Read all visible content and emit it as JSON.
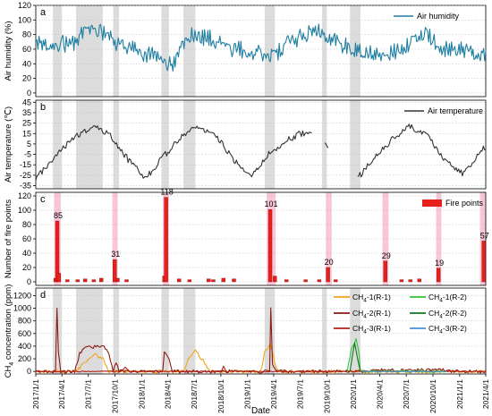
{
  "chart_data": [
    {
      "panel": "a",
      "type": "line",
      "ylabel": "Air humidity (%)",
      "ylim": [
        -5,
        120
      ],
      "yticks": [
        0,
        20,
        40,
        60,
        80,
        100,
        120
      ],
      "series": [
        {
          "name": "Air humidity",
          "color": "#1f7fa0",
          "noise": 12,
          "points": [
            {
              "x": "2017-01-01",
              "y": 70
            },
            {
              "x": "2017-03-01",
              "y": 70
            },
            {
              "x": "2017-05-01",
              "y": 65
            },
            {
              "x": "2017-06-15",
              "y": 85
            },
            {
              "x": "2017-08-01",
              "y": 88
            },
            {
              "x": "2017-10-01",
              "y": 68
            },
            {
              "x": "2017-12-01",
              "y": 60
            },
            {
              "x": "2018-03-01",
              "y": 48
            },
            {
              "x": "2018-04-15",
              "y": 38
            },
            {
              "x": "2018-06-15",
              "y": 80
            },
            {
              "x": "2018-09-01",
              "y": 75
            },
            {
              "x": "2018-11-01",
              "y": 62
            },
            {
              "x": "2019-01-01",
              "y": 58
            },
            {
              "x": "2019-04-01",
              "y": 52
            },
            {
              "x": "2019-06-01",
              "y": 70
            },
            {
              "x": "2019-08-15",
              "y": 85
            },
            {
              "x": "2019-09-30",
              "y": 82
            },
            {
              "x": "2019-11-01",
              "y": 70
            },
            {
              "x": "2020-01-01",
              "y": 60
            },
            {
              "x": "2020-04-01",
              "y": 52
            },
            {
              "x": "2020-06-01",
              "y": 58
            },
            {
              "x": "2020-09-01",
              "y": 82
            },
            {
              "x": "2020-11-01",
              "y": 62
            },
            {
              "x": "2021-04-01",
              "y": 55
            }
          ]
        }
      ],
      "shaded_periods": [
        [
          "2017-03-01",
          "2017-04-01"
        ],
        [
          "2017-05-20",
          "2017-08-20"
        ],
        [
          "2017-09-25",
          "2017-10-15"
        ],
        [
          "2018-03-10",
          "2018-04-05"
        ],
        [
          "2018-05-25",
          "2018-07-05"
        ],
        [
          "2019-03-01",
          "2019-04-05"
        ],
        [
          "2019-09-15",
          "2019-10-01"
        ],
        [
          "2019-12-20",
          "2020-01-25"
        ]
      ],
      "legend_placement": "top-right"
    },
    {
      "panel": "b",
      "type": "line",
      "ylabel": "Air temperature (℃)",
      "ylim": [
        -38,
        47
      ],
      "yticks": [
        -35,
        -25,
        -15,
        -5,
        5,
        15,
        25,
        35,
        45
      ],
      "series": [
        {
          "name": "Air temperature",
          "color": "#333333",
          "noise": 3,
          "points": [
            {
              "x": "2017-01-01",
              "y": -28
            },
            {
              "x": "2017-03-15",
              "y": -5
            },
            {
              "x": "2017-05-15",
              "y": 12
            },
            {
              "x": "2017-07-15",
              "y": 22
            },
            {
              "x": "2017-09-15",
              "y": 13
            },
            {
              "x": "2017-11-15",
              "y": -10
            },
            {
              "x": "2018-01-15",
              "y": -28
            },
            {
              "x": "2018-03-15",
              "y": -8
            },
            {
              "x": "2018-05-15",
              "y": 12
            },
            {
              "x": "2018-07-15",
              "y": 22
            },
            {
              "x": "2018-09-15",
              "y": 12
            },
            {
              "x": "2018-11-15",
              "y": -10
            },
            {
              "x": "2019-01-15",
              "y": -25
            },
            {
              "x": "2019-03-15",
              "y": -5
            },
            {
              "x": "2019-05-15",
              "y": 8
            },
            {
              "x": "2019-07-01",
              "y": 15
            },
            {
              "x": "2019-08-15",
              "y": 14
            },
            {
              "x": "2019-08-20",
              "y": null
            },
            {
              "x": "2019-09-25",
              "y": 7
            },
            {
              "x": "2019-10-10",
              "y": 2
            },
            {
              "x": "2019-10-15",
              "y": null
            },
            {
              "x": "2020-01-15",
              "y": -28
            },
            {
              "x": "2020-03-15",
              "y": -8
            },
            {
              "x": "2020-05-15",
              "y": 10
            },
            {
              "x": "2020-07-15",
              "y": 22
            },
            {
              "x": "2020-09-15",
              "y": 12
            },
            {
              "x": "2020-11-15",
              "y": -12
            },
            {
              "x": "2021-01-15",
              "y": -24
            },
            {
              "x": "2021-04-01",
              "y": 3
            }
          ]
        }
      ],
      "legend_placement": "top-right"
    },
    {
      "panel": "c",
      "type": "bar",
      "ylabel": "Number of fire points",
      "ylim": [
        -5,
        125
      ],
      "yticks": [
        0,
        20,
        40,
        60,
        80,
        100,
        120
      ],
      "series": [
        {
          "name": "Fire points",
          "color": "#e8201c",
          "bars": [
            {
              "x": "2017-03-10",
              "y": 5
            },
            {
              "x": "2017-03-16",
              "y": 85,
              "label": "85"
            },
            {
              "x": "2017-03-22",
              "y": 12
            },
            {
              "x": "2017-04-20",
              "y": 3
            },
            {
              "x": "2017-05-25",
              "y": 3
            },
            {
              "x": "2017-06-20",
              "y": 4
            },
            {
              "x": "2017-07-20",
              "y": 3
            },
            {
              "x": "2017-08-15",
              "y": 5
            },
            {
              "x": "2017-09-30",
              "y": 31,
              "label": "31"
            },
            {
              "x": "2017-10-10",
              "y": 5
            },
            {
              "x": "2017-11-10",
              "y": 3
            },
            {
              "x": "2018-03-20",
              "y": 8
            },
            {
              "x": "2018-03-26",
              "y": 118,
              "label": "118"
            },
            {
              "x": "2018-05-10",
              "y": 4
            },
            {
              "x": "2018-06-15",
              "y": 3
            },
            {
              "x": "2018-08-20",
              "y": 4
            },
            {
              "x": "2018-09-05",
              "y": 3
            },
            {
              "x": "2018-10-10",
              "y": 5
            },
            {
              "x": "2018-11-15",
              "y": 4
            },
            {
              "x": "2019-03-20",
              "y": 101,
              "label": "101"
            },
            {
              "x": "2019-04-05",
              "y": 8
            },
            {
              "x": "2019-05-15",
              "y": 3
            },
            {
              "x": "2019-07-20",
              "y": 3
            },
            {
              "x": "2019-09-05",
              "y": 3
            },
            {
              "x": "2019-10-05",
              "y": 20,
              "label": "20"
            },
            {
              "x": "2019-11-01",
              "y": 3
            },
            {
              "x": "2020-04-20",
              "y": 29,
              "label": "29"
            },
            {
              "x": "2020-06-15",
              "y": 3
            },
            {
              "x": "2020-07-15",
              "y": 3
            },
            {
              "x": "2020-08-15",
              "y": 4
            },
            {
              "x": "2020-10-20",
              "y": 19,
              "label": "19"
            },
            {
              "x": "2021-03-25",
              "y": 57,
              "label": "57"
            }
          ]
        }
      ],
      "shaded_highlight": [
        [
          "2017-03-05",
          "2017-03-28"
        ],
        [
          "2017-09-22",
          "2017-10-10"
        ],
        [
          "2018-03-15",
          "2018-04-05"
        ],
        [
          "2019-03-08",
          "2019-04-08"
        ],
        [
          "2019-09-28",
          "2019-10-18"
        ],
        [
          "2020-04-10",
          "2020-05-01"
        ],
        [
          "2020-10-12",
          "2020-10-30"
        ],
        [
          "2021-03-12",
          "2021-04-01"
        ]
      ],
      "legend_placement": "top-right"
    },
    {
      "panel": "d",
      "type": "line",
      "ylabel": "CH4 concentration (ppm)",
      "xlabel": "Date",
      "ylim": [
        -40,
        1320
      ],
      "yticks": [
        0,
        200,
        400,
        600,
        800,
        1000,
        1200
      ],
      "xticks": [
        "2017/1/1",
        "2017/4/1",
        "2017/7/1",
        "2017/10/1",
        "2018/1/1",
        "2018/4/1",
        "2018/7/1",
        "2018/10/1",
        "2019/1/1",
        "2019/4/1",
        "2019/7/1",
        "2019/10/1",
        "2020/1/1",
        "2020/4/1",
        "2020/7/1",
        "2020/10/1",
        "2021/1/1",
        "2021/4/1"
      ],
      "series": [
        {
          "name": "CH4-1(R-1)",
          "name_parts": [
            "CH",
            "4",
            "-1(R-1)"
          ],
          "color": "#f2a51a",
          "noise": 25,
          "points": [
            {
              "x": "2017-01-01",
              "y": 0
            },
            {
              "x": "2017-05-20",
              "y": 0
            },
            {
              "x": "2017-06-20",
              "y": 150
            },
            {
              "x": "2017-07-20",
              "y": 280
            },
            {
              "x": "2017-08-20",
              "y": 200
            },
            {
              "x": "2017-09-10",
              "y": 0
            },
            {
              "x": "2018-05-25",
              "y": 0
            },
            {
              "x": "2018-06-10",
              "y": 200
            },
            {
              "x": "2018-07-05",
              "y": 320
            },
            {
              "x": "2018-08-01",
              "y": 180
            },
            {
              "x": "2018-08-25",
              "y": 0
            },
            {
              "x": "2019-02-15",
              "y": 0
            },
            {
              "x": "2019-03-01",
              "y": 300
            },
            {
              "x": "2019-03-20",
              "y": 450
            },
            {
              "x": "2019-04-10",
              "y": 50
            },
            {
              "x": "2019-04-20",
              "y": 0
            },
            {
              "x": "2021-04-01",
              "y": 0
            }
          ]
        },
        {
          "name": "CH4-2(R-1)",
          "name_parts": [
            "CH",
            "4",
            "-2(R-1)"
          ],
          "color": "#8c1a12",
          "noise": 25,
          "points": [
            {
              "x": "2017-01-01",
              "y": 0
            },
            {
              "x": "2017-03-10",
              "y": 0
            },
            {
              "x": "2017-03-12",
              "y": 450
            },
            {
              "x": "2017-03-15",
              "y": 1000
            },
            {
              "x": "2017-03-20",
              "y": 300
            },
            {
              "x": "2017-03-28",
              "y": 0
            },
            {
              "x": "2017-05-15",
              "y": 0
            },
            {
              "x": "2017-06-01",
              "y": 280
            },
            {
              "x": "2017-06-25",
              "y": 380
            },
            {
              "x": "2017-08-20",
              "y": 400
            },
            {
              "x": "2017-09-10",
              "y": 300
            },
            {
              "x": "2017-09-25",
              "y": 0
            },
            {
              "x": "2017-10-05",
              "y": 150
            },
            {
              "x": "2017-10-15",
              "y": 0
            },
            {
              "x": "2018-03-15",
              "y": 0
            },
            {
              "x": "2018-03-20",
              "y": 320
            },
            {
              "x": "2018-04-05",
              "y": 200
            },
            {
              "x": "2018-04-15",
              "y": 0
            },
            {
              "x": "2019-03-18",
              "y": 0
            },
            {
              "x": "2019-03-22",
              "y": 1000
            },
            {
              "x": "2019-03-28",
              "y": 100
            },
            {
              "x": "2019-04-10",
              "y": 0
            },
            {
              "x": "2020-03-01",
              "y": 0
            },
            {
              "x": "2020-03-15",
              "y": 20
            },
            {
              "x": "2020-10-31",
              "y": 30
            },
            {
              "x": "2020-11-15",
              "y": 0
            },
            {
              "x": "2021-04-01",
              "y": 0
            }
          ]
        },
        {
          "name": "CH4-3(R-1)",
          "name_parts": [
            "CH",
            "4",
            "-3(R-1)"
          ],
          "color": "#b5201a",
          "noise": 10,
          "points": [
            {
              "x": "2017-01-01",
              "y": 0
            },
            {
              "x": "2017-10-20",
              "y": 0
            },
            {
              "x": "2017-11-05",
              "y": 60
            },
            {
              "x": "2017-11-20",
              "y": 0
            },
            {
              "x": "2018-10-01",
              "y": 0
            },
            {
              "x": "2018-10-10",
              "y": 80
            },
            {
              "x": "2018-10-20",
              "y": 0
            },
            {
              "x": "2021-04-01",
              "y": 0
            }
          ]
        },
        {
          "name": "CH4-1(R-2)",
          "name_parts": [
            "CH",
            "4",
            "-1(R-2)"
          ],
          "color": "#35c23a",
          "noise": 20,
          "points": [
            {
              "x": "2019-12-10",
              "y": 0
            },
            {
              "x": "2019-12-25",
              "y": 350
            },
            {
              "x": "2020-01-10",
              "y": 500
            },
            {
              "x": "2020-01-20",
              "y": 300
            },
            {
              "x": "2020-01-25",
              "y": 0
            },
            {
              "x": "2020-11-15",
              "y": 0
            }
          ]
        },
        {
          "name": "CH4-2(R-2)",
          "name_parts": [
            "CH",
            "4",
            "-2(R-2)"
          ],
          "color": "#0e7a1e",
          "noise": 15,
          "points": [
            {
              "x": "2019-12-20",
              "y": 0
            },
            {
              "x": "2020-01-05",
              "y": 450
            },
            {
              "x": "2020-01-15",
              "y": 200
            },
            {
              "x": "2020-01-25",
              "y": 0
            }
          ]
        },
        {
          "name": "CH4-3(R-2)",
          "name_parts": [
            "CH",
            "4",
            "-3(R-2)"
          ],
          "color": "#4a90d9",
          "noise": 0,
          "points": [
            {
              "x": "2020-02-01",
              "y": 0
            },
            {
              "x": "2020-11-15",
              "y": 0
            }
          ]
        }
      ],
      "shaded_periods": [
        [
          "2017-03-01",
          "2017-04-01"
        ],
        [
          "2017-05-20",
          "2017-08-20"
        ],
        [
          "2017-09-25",
          "2017-10-15"
        ],
        [
          "2018-03-10",
          "2018-04-05"
        ],
        [
          "2018-05-25",
          "2018-07-05"
        ],
        [
          "2019-03-01",
          "2019-04-05"
        ],
        [
          "2019-09-15",
          "2019-10-01"
        ],
        [
          "2019-12-20",
          "2020-01-25"
        ]
      ],
      "legend_placement": "top-right"
    }
  ],
  "panel_letters": [
    "a",
    "b",
    "c",
    "d"
  ],
  "grid": "horizontal dotted",
  "colors": {
    "shade": "#dcdcdc",
    "fire_highlight": "#f8c6d6",
    "humidity_band": "#d6f0f5",
    "axis": "#000000"
  }
}
